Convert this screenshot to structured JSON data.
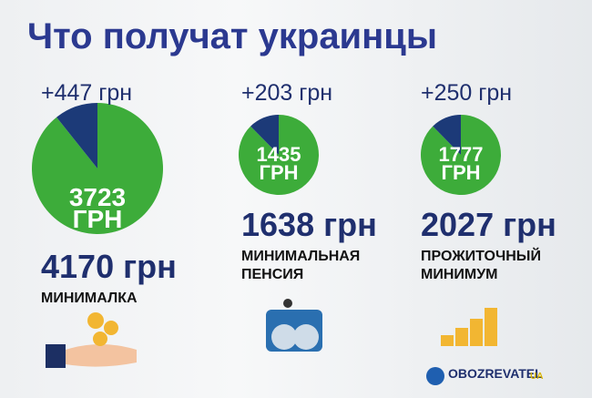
{
  "title": "Что получат украинцы",
  "logo": "OBOZREVATEL",
  "logo_suffix": "UA",
  "chart_data": [
    {
      "type": "pie",
      "title": "МИНИМАЛКА",
      "total_label": "4170 грн",
      "values": [
        3723,
        447
      ],
      "value_labels": [
        "3723\nГРН",
        "+447 грн"
      ],
      "colors": [
        "#3dac3a",
        "#1c3a78"
      ]
    },
    {
      "type": "pie",
      "title": "МИНИМАЛЬНАЯ\nПЕНСИЯ",
      "total_label": "1638 грн",
      "values": [
        1435,
        203
      ],
      "value_labels": [
        "1435\nГРН",
        "+203 грн"
      ],
      "colors": [
        "#3dac3a",
        "#1c3a78"
      ]
    },
    {
      "type": "pie",
      "title": "ПРОЖИТОЧНЫЙ\nМИНИМУМ",
      "total_label": "2027 грн",
      "values": [
        1777,
        250
      ],
      "value_labels": [
        "1777\nГРН",
        "+250 грн"
      ],
      "colors": [
        "#3dac3a",
        "#1c3a78"
      ]
    }
  ]
}
